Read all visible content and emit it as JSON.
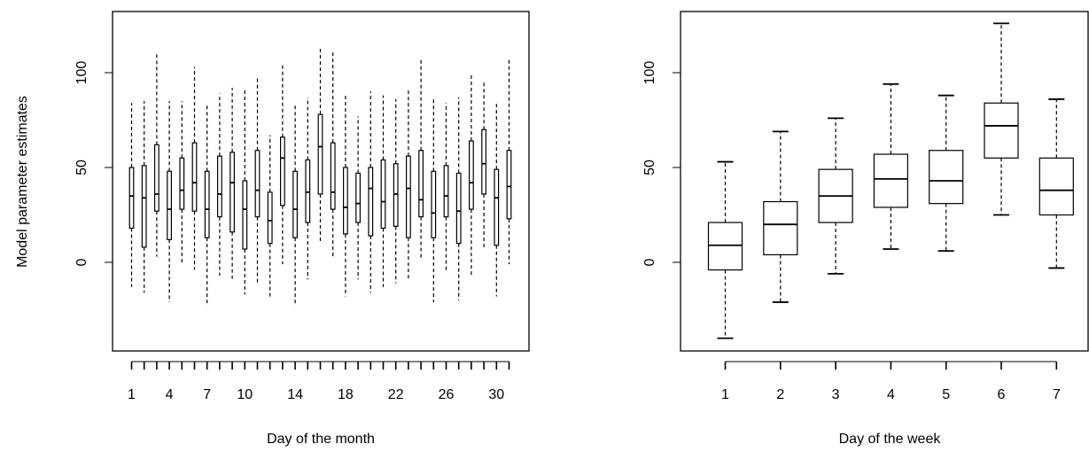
{
  "chart_data": [
    {
      "type": "boxplot",
      "title": "",
      "xlabel": "Day of the month",
      "ylabel": "Model parameter estimates",
      "ylim": [
        -45,
        130
      ],
      "yticks": [
        0,
        50,
        100
      ],
      "categories": [
        "1",
        "2",
        "3",
        "4",
        "5",
        "6",
        "7",
        "8",
        "9",
        "10",
        "11",
        "12",
        "13",
        "14",
        "15",
        "16",
        "17",
        "18",
        "19",
        "20",
        "21",
        "22",
        "23",
        "24",
        "25",
        "26",
        "27",
        "28",
        "29",
        "30",
        "31"
      ],
      "xtick_labels": [
        "1",
        "4",
        "7",
        "10",
        "14",
        "18",
        "22",
        "26",
        "30"
      ],
      "xtick_label_positions": [
        1,
        4,
        7,
        10,
        14,
        18,
        22,
        26,
        30
      ],
      "boxes": [
        {
          "whisker_low": -13,
          "q1": 18,
          "median": 35,
          "q3": 50,
          "whisker_high": 84
        },
        {
          "whisker_low": -16,
          "q1": 8,
          "median": 34,
          "q3": 51,
          "whisker_high": 85
        },
        {
          "whisker_low": 3,
          "q1": 27,
          "median": 36,
          "q3": 62,
          "whisker_high": 111
        },
        {
          "whisker_low": -21,
          "q1": 12,
          "median": 28,
          "q3": 48,
          "whisker_high": 85
        },
        {
          "whisker_low": -1,
          "q1": 28,
          "median": 38,
          "q3": 55,
          "whisker_high": 85
        },
        {
          "whisker_low": -4,
          "q1": 27,
          "median": 42,
          "q3": 63,
          "whisker_high": 103
        },
        {
          "whisker_low": -23,
          "q1": 13,
          "median": 28,
          "q3": 48,
          "whisker_high": 84
        },
        {
          "whisker_low": -7,
          "q1": 24,
          "median": 36,
          "q3": 56,
          "whisker_high": 89
        },
        {
          "whisker_low": -10,
          "q1": 16,
          "median": 42,
          "q3": 58,
          "whisker_high": 92
        },
        {
          "whisker_low": -17,
          "q1": 7,
          "median": 28,
          "q3": 43,
          "whisker_high": 92
        },
        {
          "whisker_low": -11,
          "q1": 24,
          "median": 38,
          "q3": 59,
          "whisker_high": 97
        },
        {
          "whisker_low": -19,
          "q1": 10,
          "median": 22,
          "q3": 37,
          "whisker_high": 67
        },
        {
          "whisker_low": -1,
          "q1": 30,
          "median": 55,
          "q3": 66,
          "whisker_high": 105
        },
        {
          "whisker_low": -23,
          "q1": 13,
          "median": 28,
          "q3": 48,
          "whisker_high": 84
        },
        {
          "whisker_low": -9,
          "q1": 21,
          "median": 37,
          "q3": 54,
          "whisker_high": 87
        },
        {
          "whisker_low": 10,
          "q1": 36,
          "median": 61,
          "q3": 78,
          "whisker_high": 113
        },
        {
          "whisker_low": 3,
          "q1": 28,
          "median": 37,
          "q3": 63,
          "whisker_high": 112
        },
        {
          "whisker_low": -18,
          "q1": 15,
          "median": 29,
          "q3": 50,
          "whisker_high": 88
        },
        {
          "whisker_low": -9,
          "q1": 21,
          "median": 31,
          "q3": 47,
          "whisker_high": 77
        },
        {
          "whisker_low": -16,
          "q1": 14,
          "median": 39,
          "q3": 50,
          "whisker_high": 90
        },
        {
          "whisker_low": -13,
          "q1": 18,
          "median": 32,
          "q3": 54,
          "whisker_high": 88
        },
        {
          "whisker_low": -11,
          "q1": 19,
          "median": 36,
          "q3": 52,
          "whisker_high": 86
        },
        {
          "whisker_low": -9,
          "q1": 13,
          "median": 39,
          "q3": 56,
          "whisker_high": 91
        },
        {
          "whisker_low": 1,
          "q1": 24,
          "median": 33,
          "q3": 59,
          "whisker_high": 108
        },
        {
          "whisker_low": -21,
          "q1": 13,
          "median": 26,
          "q3": 48,
          "whisker_high": 86
        },
        {
          "whisker_low": -5,
          "q1": 24,
          "median": 35,
          "q3": 51,
          "whisker_high": 84
        },
        {
          "whisker_low": -20,
          "q1": 10,
          "median": 27,
          "q3": 47,
          "whisker_high": 87
        },
        {
          "whisker_low": -7,
          "q1": 28,
          "median": 42,
          "q3": 64,
          "whisker_high": 99
        },
        {
          "whisker_low": 7,
          "q1": 36,
          "median": 52,
          "q3": 70,
          "whisker_high": 95
        },
        {
          "whisker_low": -18,
          "q1": 9,
          "median": 34,
          "q3": 49,
          "whisker_high": 84
        },
        {
          "whisker_low": -1,
          "q1": 23,
          "median": 40,
          "q3": 59,
          "whisker_high": 108
        }
      ]
    },
    {
      "type": "boxplot",
      "title": "",
      "xlabel": "Day of the week",
      "ylabel": "",
      "ylim": [
        -45,
        130
      ],
      "yticks": [
        0,
        50,
        100
      ],
      "categories": [
        "1",
        "2",
        "3",
        "4",
        "5",
        "6",
        "7"
      ],
      "boxes": [
        {
          "whisker_low": -40,
          "q1": -4,
          "median": 9,
          "q3": 21,
          "whisker_high": 53
        },
        {
          "whisker_low": -21,
          "q1": 4,
          "median": 20,
          "q3": 32,
          "whisker_high": 69
        },
        {
          "whisker_low": -6,
          "q1": 21,
          "median": 35,
          "q3": 49,
          "whisker_high": 76
        },
        {
          "whisker_low": 7,
          "q1": 29,
          "median": 44,
          "q3": 57,
          "whisker_high": 94
        },
        {
          "whisker_low": 6,
          "q1": 31,
          "median": 43,
          "q3": 59,
          "whisker_high": 88
        },
        {
          "whisker_low": 25,
          "q1": 55,
          "median": 72,
          "q3": 84,
          "whisker_high": 126
        },
        {
          "whisker_low": -3,
          "q1": 25,
          "median": 38,
          "q3": 55,
          "whisker_high": 86
        }
      ]
    }
  ]
}
